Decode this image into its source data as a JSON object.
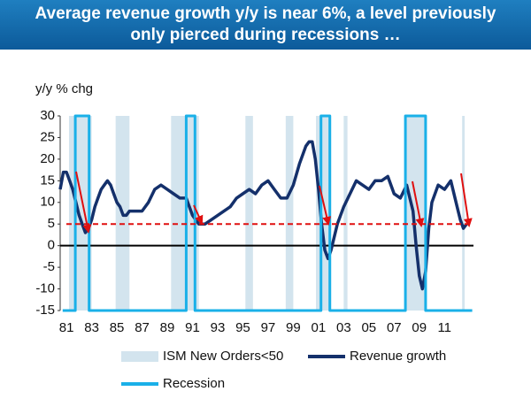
{
  "chart_data": {
    "type": "line",
    "title": [
      "Average revenue growth y/y is near 6%, a level previously",
      "only pierced during recessions …"
    ],
    "y_label": "y/y % chg",
    "xlim": [
      1980.5,
      2013.3
    ],
    "ylim": [
      -15,
      30
    ],
    "yticks": [
      30,
      25,
      20,
      15,
      10,
      5,
      0,
      -5,
      -10,
      -15
    ],
    "xticks": [
      {
        "value": 1981,
        "label": "81"
      },
      {
        "value": 1983,
        "label": "83"
      },
      {
        "value": 1985,
        "label": "85"
      },
      {
        "value": 1987,
        "label": "87"
      },
      {
        "value": 1989,
        "label": "89"
      },
      {
        "value": 1991,
        "label": "91"
      },
      {
        "value": 1993,
        "label": "93"
      },
      {
        "value": 1995,
        "label": "95"
      },
      {
        "value": 1997,
        "label": "97"
      },
      {
        "value": 1999,
        "label": "99"
      },
      {
        "value": 2001,
        "label": "01"
      },
      {
        "value": 2003,
        "label": "03"
      },
      {
        "value": 2005,
        "label": "05"
      },
      {
        "value": 2007,
        "label": "07"
      },
      {
        "value": 2009,
        "label": "09"
      },
      {
        "value": 2011,
        "label": "11"
      }
    ],
    "bands": {
      "name": "ISM New Orders<50",
      "color": "#d3e4ee",
      "ranges": [
        [
          1981.2,
          1983.0
        ],
        [
          1984.9,
          1986.0
        ],
        [
          1989.3,
          1991.5
        ],
        [
          1995.2,
          1995.8
        ],
        [
          1998.4,
          1999.0
        ],
        [
          2000.8,
          2002.0
        ],
        [
          2003.0,
          2003.3
        ],
        [
          2007.9,
          2009.6
        ],
        [
          2012.4,
          2012.6
        ]
      ]
    },
    "reference_line": {
      "value": 5,
      "color": "#e01010"
    },
    "series": [
      {
        "name": "Revenue growth",
        "color": "#14306b",
        "x": [
          1980.5,
          1980.75,
          1981,
          1981.25,
          1981.5,
          1981.75,
          1982,
          1982.25,
          1982.5,
          1982.75,
          1983,
          1983.25,
          1983.5,
          1983.75,
          1984,
          1984.25,
          1984.5,
          1984.75,
          1985,
          1985.25,
          1985.5,
          1985.75,
          1986,
          1986.5,
          1987,
          1987.5,
          1988,
          1988.5,
          1989,
          1989.5,
          1990,
          1990.5,
          1991,
          1991.5,
          1992,
          1992.5,
          1993,
          1993.5,
          1994,
          1994.5,
          1995,
          1995.5,
          1996,
          1996.5,
          1997,
          1997.5,
          1998,
          1998.5,
          1999,
          1999.5,
          2000,
          2000.25,
          2000.5,
          2000.75,
          2001,
          2001.25,
          2001.5,
          2001.75,
          2002,
          2002.5,
          2003,
          2003.5,
          2004,
          2004.5,
          2005,
          2005.5,
          2006,
          2006.5,
          2007,
          2007.5,
          2008,
          2008.25,
          2008.5,
          2008.75,
          2009,
          2009.25,
          2009.5,
          2009.75,
          2010,
          2010.5,
          2011,
          2011.5,
          2012,
          2012.25,
          2012.5,
          2012.75
        ],
        "values": [
          13,
          17,
          17,
          15,
          13,
          10,
          7,
          5,
          3,
          4,
          6,
          9,
          11,
          13,
          14,
          15,
          14,
          12,
          10,
          9,
          7,
          7,
          8,
          8,
          8,
          10,
          13,
          14,
          13,
          12,
          11,
          11,
          7,
          5,
          5,
          6,
          7,
          8,
          9,
          11,
          12,
          13,
          12,
          14,
          15,
          13,
          11,
          11,
          14,
          19,
          23,
          24,
          24,
          20,
          13,
          5,
          -1,
          -3,
          -1,
          5,
          9,
          12,
          15,
          14,
          13,
          15,
          15,
          16,
          12,
          11,
          14,
          11,
          8,
          0,
          -7,
          -10,
          -6,
          4,
          10,
          14,
          13,
          15,
          9,
          6,
          4,
          5
        ]
      },
      {
        "name": "Recession",
        "color": "#1ab0e8",
        "x": [
          1980.7,
          1981.7,
          1981.7,
          1982.8,
          1982.8,
          1990.5,
          1990.5,
          1991.2,
          1991.2,
          2001.2,
          2001.2,
          2001.9,
          2001.9,
          2007.9,
          2007.9,
          2009.5,
          2009.5,
          2013.2
        ],
        "values": [
          -15,
          -15,
          30,
          30,
          -15,
          -15,
          30,
          30,
          -15,
          -15,
          30,
          30,
          -15,
          -15,
          30,
          30,
          -15,
          -15
        ]
      }
    ]
  }
}
